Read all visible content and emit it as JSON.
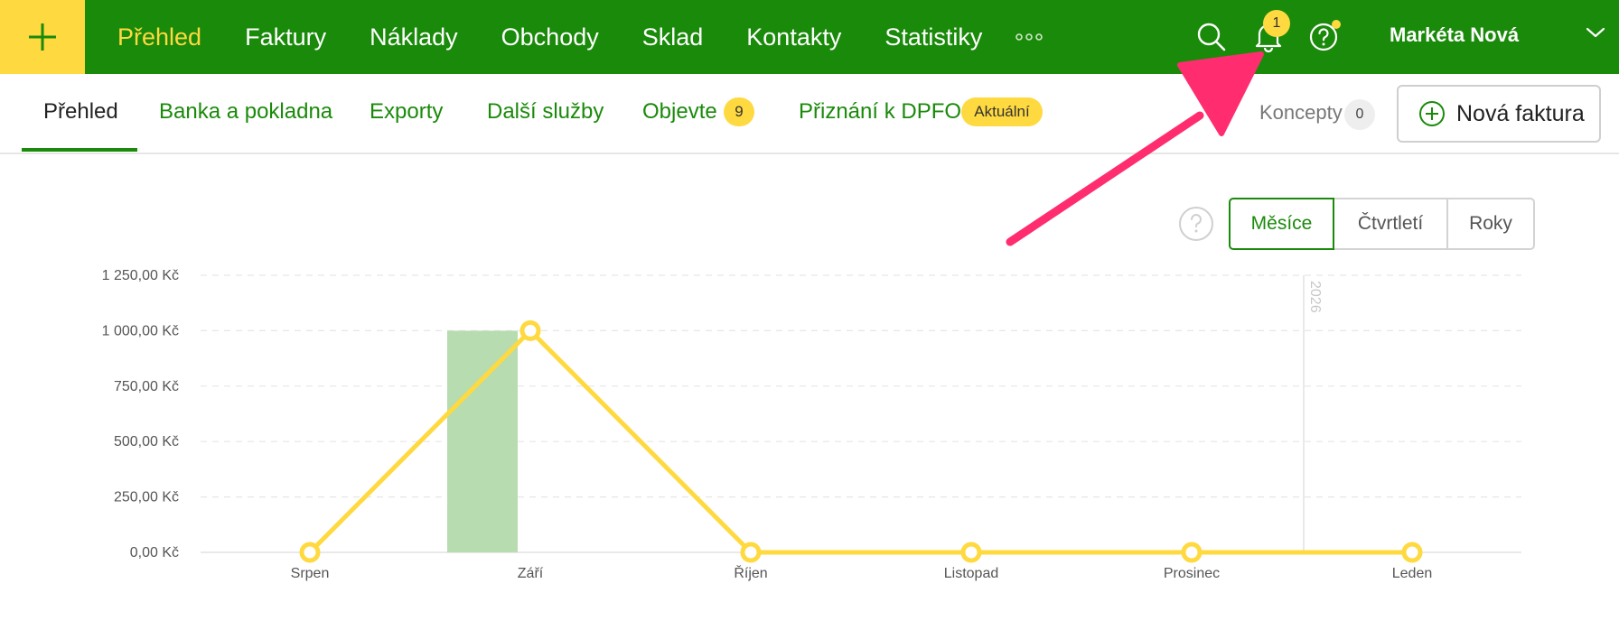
{
  "topbar": {
    "nav": [
      "Přehled",
      "Faktury",
      "Náklady",
      "Obchody",
      "Sklad",
      "Kontakty",
      "Statistiky"
    ],
    "active_nav": "Přehled",
    "notification_count": "1",
    "user_name": "Markéta Nová",
    "colors": {
      "bar": "#1a8a0a",
      "accent": "#ffd940"
    },
    "icons": [
      "plus-icon",
      "more-icon",
      "search-icon",
      "bell-icon",
      "help-icon",
      "chevron-down-icon"
    ]
  },
  "subnav": {
    "items": [
      "Přehled",
      "Banka a pokladna",
      "Exporty",
      "Další služby",
      "Objevte",
      "Přiznání k DPFO"
    ],
    "objevte_badge": "9",
    "dpfo_badge": "Aktuální",
    "koncepty_label": "Koncepty",
    "koncepty_count": "0",
    "new_invoice_label": "Nová faktura"
  },
  "period_toggle": {
    "options": [
      "Měsíce",
      "Čtvrtletí",
      "Roky"
    ],
    "selected": "Měsíce"
  },
  "chart_data": {
    "type": "bar",
    "categories": [
      "Srpen",
      "Září",
      "Říjen",
      "Listopad",
      "Prosinec",
      "Leden"
    ],
    "y_ticks": [
      "0,00 Kč",
      "250,00 Kč",
      "500,00 Kč",
      "750,00 Kč",
      "1 000,00 Kč",
      "1 250,00 Kč"
    ],
    "ylim": [
      0,
      1250
    ],
    "grid": true,
    "year_marker": {
      "label": "2026",
      "before_category": "Leden"
    },
    "series": [
      {
        "type": "bar",
        "color": "#b7dcb0",
        "values": [
          0,
          1000,
          0,
          0,
          0,
          0
        ]
      },
      {
        "type": "line",
        "color": "#ffd940",
        "values": [
          0,
          1000,
          0,
          0,
          0,
          0
        ]
      }
    ]
  },
  "annotation": {
    "color": "#ff2d6f",
    "points_to": "bell-icon"
  }
}
